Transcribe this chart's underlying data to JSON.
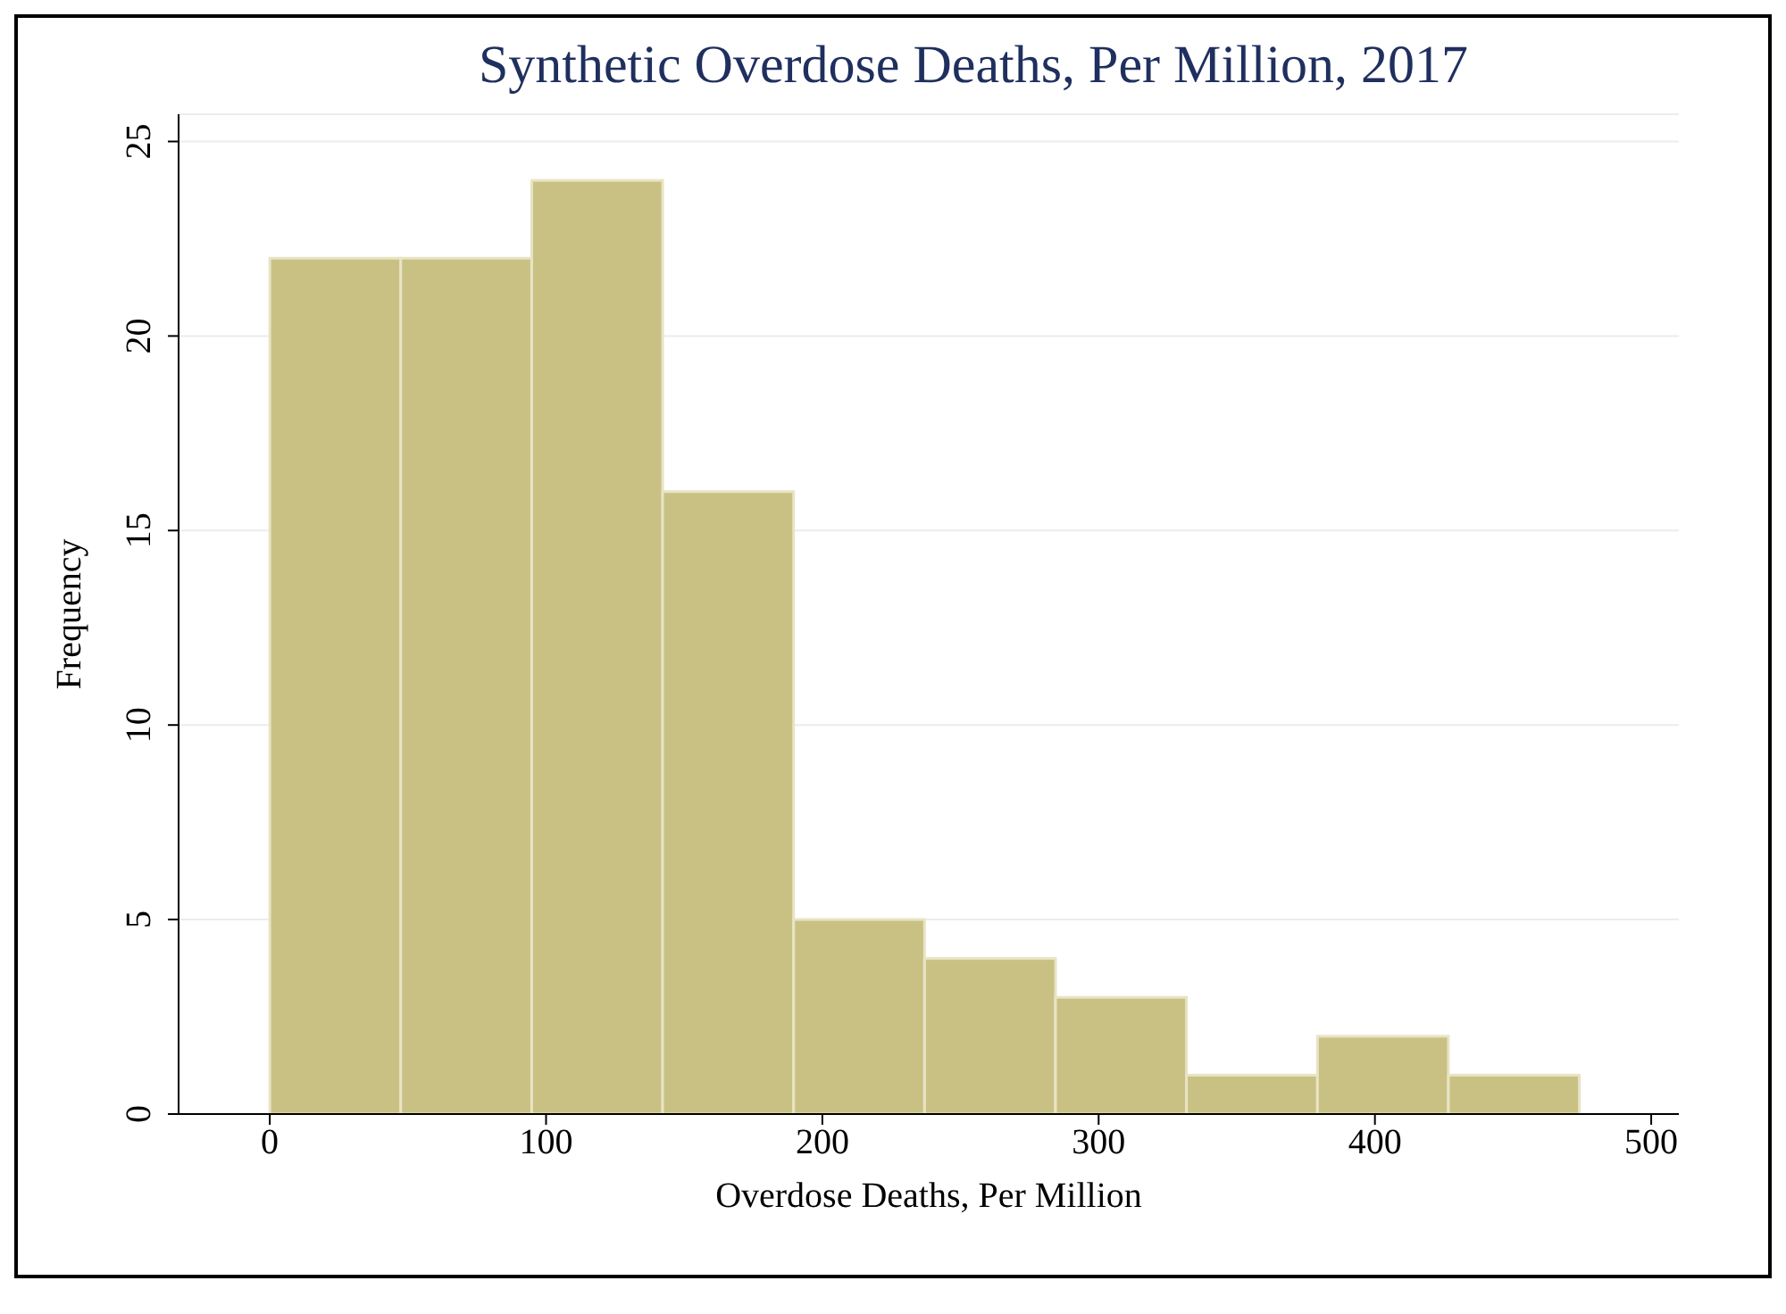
{
  "chart_data": {
    "type": "histogram",
    "title": "Synthetic Overdose Deaths, Per Million, 2017",
    "xlabel": "Overdose Deaths, Per Million",
    "ylabel": "Frequency",
    "bins": [
      0,
      47.4,
      94.8,
      142.2,
      189.6,
      237,
      284.4,
      331.8,
      379.2,
      426.6,
      474
    ],
    "values": [
      22,
      22,
      24,
      16,
      5,
      4,
      3,
      1,
      2,
      1
    ],
    "color": "#c9c184",
    "xlim": [
      -33,
      510
    ],
    "xticks": [
      0,
      100,
      200,
      300,
      400,
      500
    ],
    "ylim": [
      0,
      25.7
    ],
    "yticks": [
      0,
      5,
      10,
      15,
      20,
      25
    ],
    "grid": "y"
  }
}
